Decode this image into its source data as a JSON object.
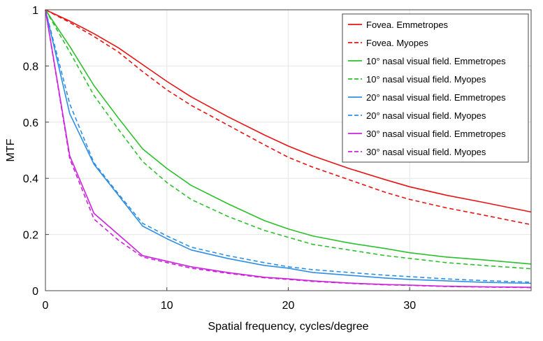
{
  "chart_data": {
    "type": "line",
    "xlabel": "Spatial frequency, cycles/degree",
    "ylabel": "MTF",
    "xlim": [
      0,
      40
    ],
    "ylim": [
      0,
      1
    ],
    "xticks": [
      0,
      10,
      20,
      30
    ],
    "yticks": [
      0,
      0.2,
      0.4,
      0.6,
      0.8,
      1
    ],
    "ytick_labels": [
      "0",
      "0.2",
      "0.4",
      "0.6",
      "0.8",
      "1"
    ],
    "grid": true,
    "legend_position": "top-right",
    "series": [
      {
        "name": "Fovea. Emmetropes",
        "color": "#e81313",
        "dash": "solid",
        "x": [
          0,
          2,
          4,
          6,
          8,
          10,
          12,
          15,
          18,
          20,
          22,
          25,
          28,
          30,
          33,
          36,
          40
        ],
        "y": [
          1.0,
          0.96,
          0.915,
          0.865,
          0.805,
          0.745,
          0.69,
          0.62,
          0.555,
          0.515,
          0.48,
          0.435,
          0.395,
          0.37,
          0.34,
          0.315,
          0.28
        ]
      },
      {
        "name": "Fovea. Myopes",
        "color": "#e81313",
        "dash": "dashed",
        "x": [
          0,
          2,
          4,
          6,
          8,
          10,
          12,
          15,
          18,
          20,
          22,
          25,
          28,
          30,
          33,
          36,
          40
        ],
        "y": [
          1.0,
          0.955,
          0.905,
          0.85,
          0.78,
          0.715,
          0.66,
          0.59,
          0.52,
          0.475,
          0.44,
          0.395,
          0.35,
          0.325,
          0.295,
          0.27,
          0.235
        ]
      },
      {
        "name": "10° nasal visual field. Emmetropes",
        "color": "#2cc02c",
        "dash": "solid",
        "x": [
          0,
          2,
          4,
          6,
          8,
          10,
          12,
          15,
          18,
          20,
          22,
          25,
          28,
          30,
          33,
          36,
          40
        ],
        "y": [
          1.0,
          0.87,
          0.73,
          0.615,
          0.505,
          0.435,
          0.375,
          0.31,
          0.25,
          0.22,
          0.195,
          0.17,
          0.15,
          0.135,
          0.12,
          0.11,
          0.095
        ]
      },
      {
        "name": "10° nasal visual field. Myopes",
        "color": "#2cc02c",
        "dash": "dashed",
        "x": [
          0,
          2,
          4,
          6,
          8,
          10,
          12,
          15,
          18,
          20,
          22,
          25,
          28,
          30,
          33,
          36,
          40
        ],
        "y": [
          1.0,
          0.85,
          0.695,
          0.575,
          0.46,
          0.385,
          0.325,
          0.265,
          0.215,
          0.19,
          0.165,
          0.145,
          0.125,
          0.115,
          0.1,
          0.09,
          0.078
        ]
      },
      {
        "name": "20° nasal visual field. Emmetropes",
        "color": "#2e8ee6",
        "dash": "solid",
        "x": [
          0,
          2,
          4,
          6,
          8,
          10,
          12,
          15,
          18,
          20,
          22,
          25,
          28,
          30,
          33,
          36,
          40
        ],
        "y": [
          1.0,
          0.63,
          0.45,
          0.34,
          0.23,
          0.185,
          0.145,
          0.115,
          0.09,
          0.08,
          0.065,
          0.055,
          0.045,
          0.04,
          0.035,
          0.03,
          0.026
        ]
      },
      {
        "name": "20° nasal visual field. Myopes",
        "color": "#2e8ee6",
        "dash": "dashed",
        "x": [
          0,
          2,
          4,
          6,
          8,
          10,
          12,
          15,
          18,
          20,
          22,
          25,
          28,
          30,
          33,
          36,
          40
        ],
        "y": [
          1.0,
          0.665,
          0.455,
          0.345,
          0.24,
          0.195,
          0.155,
          0.125,
          0.1,
          0.085,
          0.075,
          0.065,
          0.055,
          0.05,
          0.042,
          0.036,
          0.03
        ]
      },
      {
        "name": "30° nasal visual field. Emmetropes",
        "color": "#cc22dd",
        "dash": "solid",
        "x": [
          0,
          2,
          4,
          6,
          8,
          10,
          12,
          15,
          18,
          20,
          22,
          25,
          28,
          30,
          33,
          36,
          40
        ],
        "y": [
          1.0,
          0.48,
          0.275,
          0.2,
          0.125,
          0.105,
          0.085,
          0.065,
          0.048,
          0.042,
          0.035,
          0.027,
          0.022,
          0.02,
          0.016,
          0.014,
          0.012
        ]
      },
      {
        "name": "30° nasal visual field. Myopes",
        "color": "#cc22dd",
        "dash": "dashed",
        "x": [
          0,
          2,
          4,
          6,
          8,
          10,
          12,
          15,
          18,
          20,
          22,
          25,
          28,
          30,
          33,
          36,
          40
        ],
        "y": [
          1.0,
          0.47,
          0.255,
          0.18,
          0.12,
          0.1,
          0.08,
          0.062,
          0.046,
          0.04,
          0.033,
          0.026,
          0.021,
          0.019,
          0.015,
          0.013,
          0.011
        ]
      }
    ]
  }
}
